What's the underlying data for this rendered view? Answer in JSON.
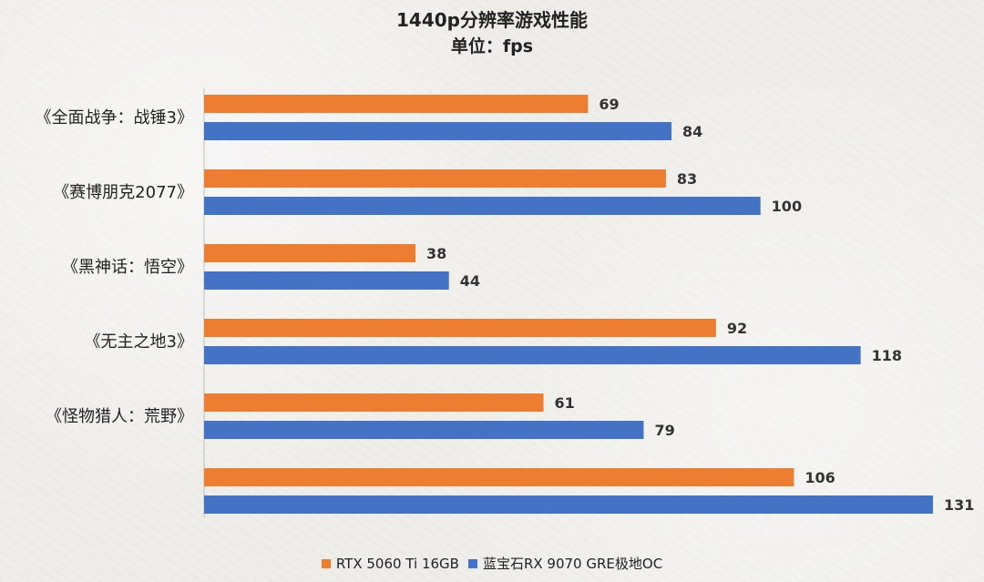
{
  "chart_data": {
    "type": "bar",
    "orientation": "horizontal",
    "title": "1440p分辨率游戏性能",
    "subtitle": "单位：fps",
    "categories": [
      "《全面战争：战锤3》",
      "《赛博朋克2077》",
      "《黑神话：悟空》",
      "《无主之地3》",
      "《怪物猎人：荒野》",
      ""
    ],
    "series": [
      {
        "name": "RTX 5060 Ti 16GB",
        "color": "#ed7d31",
        "values": [
          69,
          83,
          38,
          92,
          61,
          106
        ]
      },
      {
        "name": "蓝宝石RX 9070 GRE极地OC",
        "color": "#4472c4",
        "values": [
          84,
          100,
          44,
          118,
          79,
          131
        ]
      }
    ],
    "xlim": [
      0,
      131
    ],
    "grid": false,
    "legend": "bottom",
    "data_labels": true
  }
}
